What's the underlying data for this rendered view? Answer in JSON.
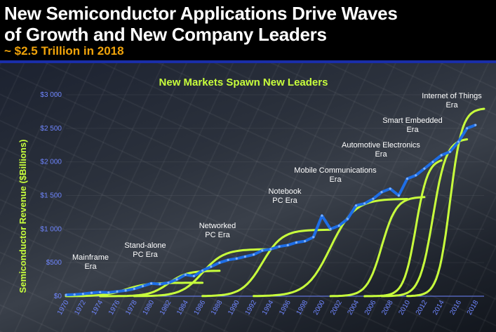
{
  "header": {
    "title_line1": "New Semiconductor Applications Drive Waves",
    "title_line2": "of Growth and New Company Leaders",
    "subtitle": "~ $2.5 Trillion in 2018"
  },
  "colors": {
    "title": "#ffffff",
    "subtitle": "#f0a30a",
    "divider": "#1a2ea8",
    "era_curves": "#c8ff3c",
    "revenue_line": "#1e6ee6",
    "axis_ticks": "#6f86ff"
  },
  "chart_data": {
    "type": "line",
    "title": "New Markets Spawn New Leaders",
    "ylabel": "Semiconductor Revenue ($Billions)",
    "xlabel": "",
    "xlim": [
      1970,
      2019
    ],
    "ylim": [
      0,
      3000
    ],
    "x_ticks": [
      "1970",
      "1972",
      "1974",
      "1976",
      "1978",
      "1980",
      "1982",
      "1984",
      "1986",
      "1988",
      "1990",
      "1992",
      "1994",
      "1996",
      "1998",
      "2000",
      "2002",
      "2004",
      "2006",
      "2008",
      "2010",
      "2012",
      "2014",
      "2016",
      "2018"
    ],
    "y_ticks": [
      {
        "value": 0,
        "label": "$0"
      },
      {
        "value": 500,
        "label": "$500"
      },
      {
        "value": 1000,
        "label": "$1 000"
      },
      {
        "value": 1500,
        "label": "$1 500"
      },
      {
        "value": 2000,
        "label": "$2 000"
      },
      {
        "value": 2500,
        "label": "$2 500"
      },
      {
        "value": 3000,
        "label": "$3 000"
      }
    ],
    "series": [
      {
        "x": [
          1970,
          1971,
          1972,
          1973,
          1974,
          1975,
          1976,
          1977,
          1978,
          1979,
          1980,
          1981,
          1982,
          1983,
          1984,
          1985,
          1986,
          1987,
          1988,
          1989,
          1990,
          1991,
          1992,
          1993,
          1994,
          1995,
          1996,
          1997,
          1998,
          1999,
          2000,
          2001,
          2002,
          2003,
          2004,
          2005,
          2006,
          2007,
          2008,
          2009,
          2010,
          2011,
          2012,
          2013,
          2014,
          2015,
          2016,
          2017,
          2018
        ],
        "y": [
          20,
          25,
          35,
          50,
          60,
          55,
          70,
          85,
          110,
          150,
          190,
          180,
          200,
          250,
          320,
          300,
          380,
          440,
          500,
          540,
          560,
          590,
          620,
          680,
          700,
          740,
          760,
          800,
          820,
          880,
          1200,
          1000,
          1050,
          1150,
          1350,
          1380,
          1450,
          1550,
          1600,
          1500,
          1750,
          1800,
          1900,
          2000,
          2100,
          2150,
          2300,
          2500,
          2550
        ]
      }
    ],
    "eras": [
      {
        "lines": [
          "Mainframe",
          "Era"
        ],
        "curve": {
          "x0": 1970,
          "x1": 1986,
          "mid": 1977,
          "top": 200
        }
      },
      {
        "lines": [
          "Stand-alone",
          "PC Era"
        ],
        "curve": {
          "x0": 1974,
          "x1": 1988,
          "mid": 1982,
          "top": 380
        }
      },
      {
        "lines": [
          "Networked",
          "PC Era"
        ],
        "curve": {
          "x0": 1978,
          "x1": 1994,
          "mid": 1986,
          "top": 700
        }
      },
      {
        "lines": [
          "Notebook",
          "PC Era"
        ],
        "curve": {
          "x0": 1986,
          "x1": 2001,
          "mid": 1993,
          "top": 990
        }
      },
      {
        "lines": [
          "Mobile Communications",
          "Era"
        ],
        "curve": {
          "x0": 1992,
          "x1": 2010,
          "mid": 2001,
          "top": 1450
        }
      },
      {
        "lines": [
          "Automotive Electronics",
          "Era"
        ],
        "curve": {
          "x0": 2001,
          "x1": 2012,
          "mid": 2007,
          "top": 1480
        }
      },
      {
        "lines": [
          "Smart Embedded",
          "Era"
        ],
        "curve": {
          "x0": 2005,
          "x1": 2014,
          "mid": 2011,
          "top": 2050
        }
      },
      {
        "lines": [
          "Internet of Things",
          "Era"
        ],
        "curve": {
          "x0": 2007,
          "x1": 2017,
          "mid": 2013,
          "top": 2350
        }
      },
      {
        "lines": [],
        "curve": {
          "x0": 2010,
          "x1": 2019,
          "mid": 2015,
          "top": 2800
        }
      }
    ]
  }
}
